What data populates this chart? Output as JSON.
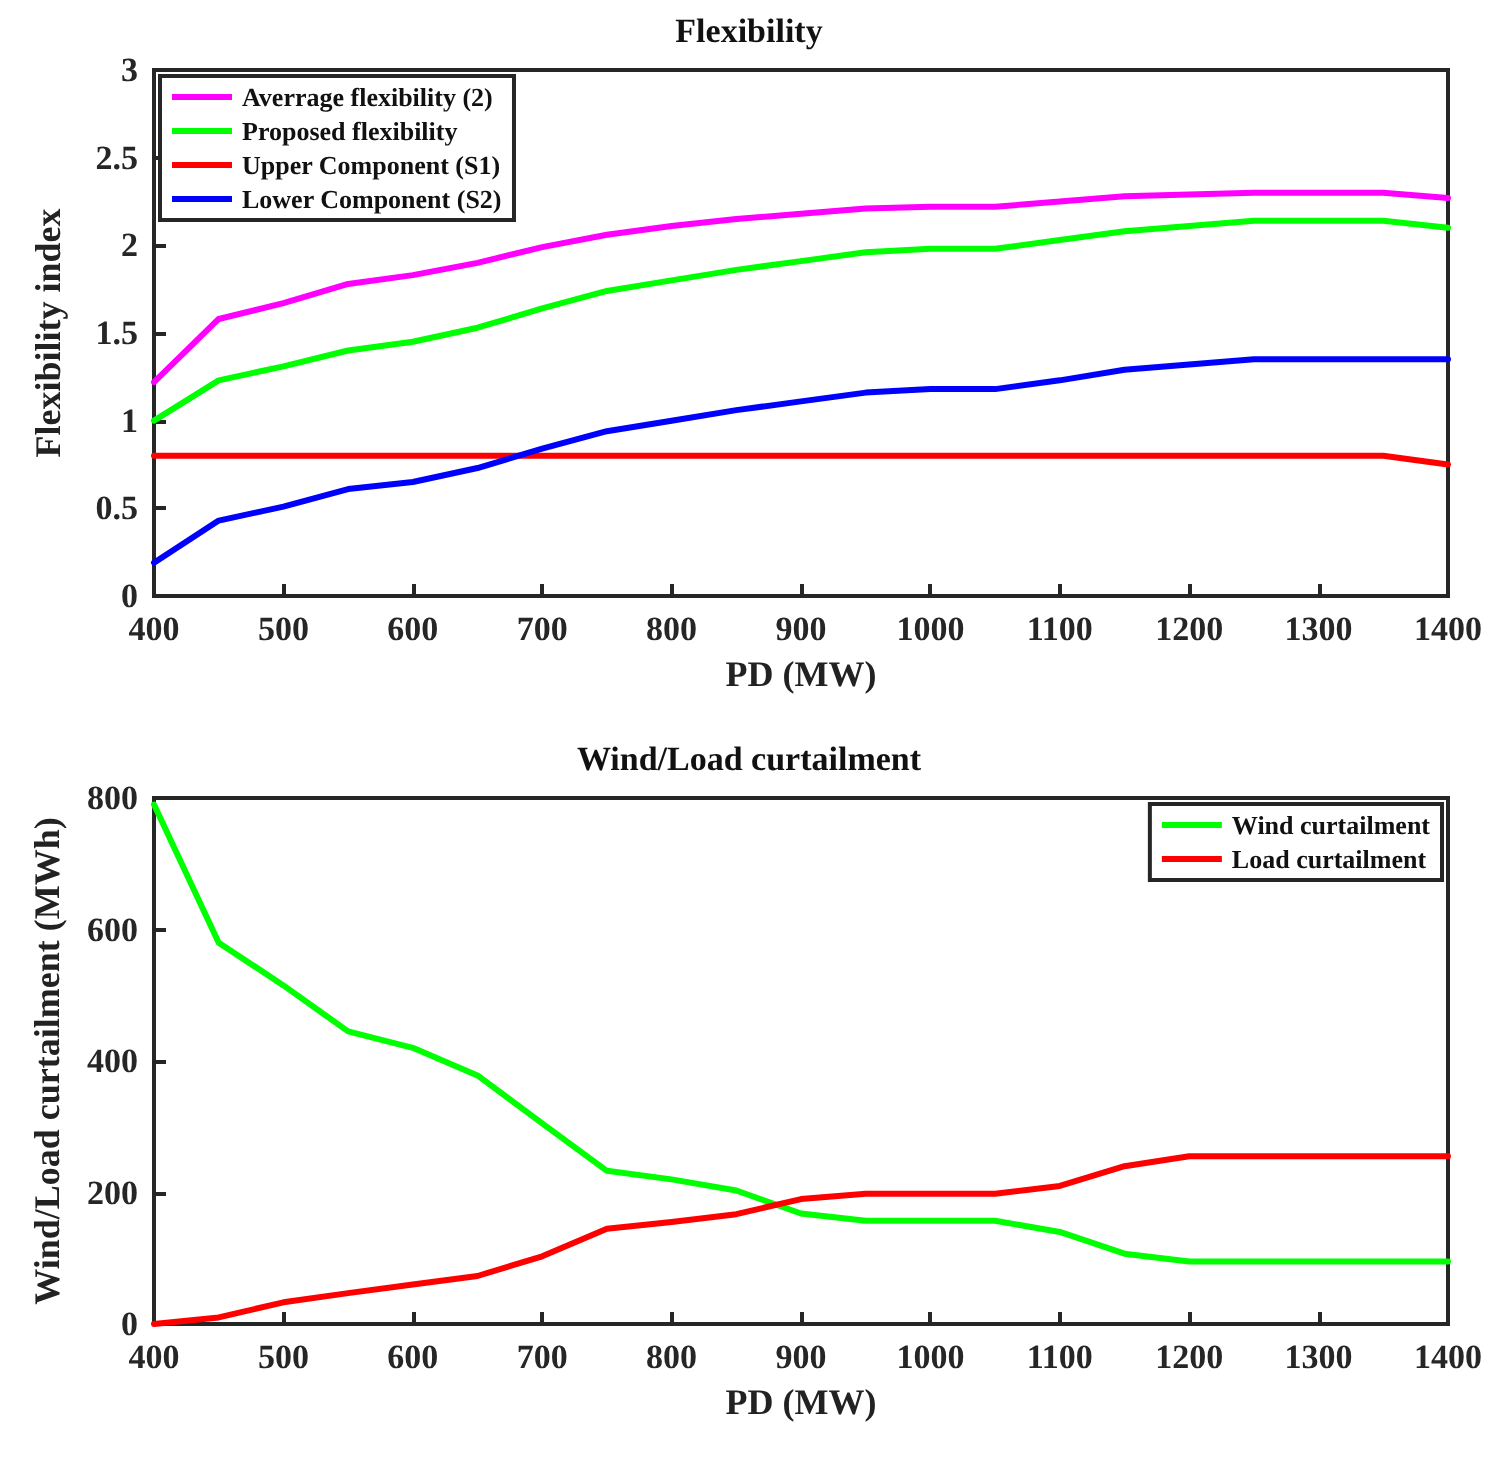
{
  "chart_data": [
    {
      "type": "line",
      "title": "Flexibility",
      "xlabel": "PD (MW)",
      "ylabel": "Flexibility index",
      "x": [
        400,
        450,
        500,
        550,
        600,
        650,
        700,
        750,
        800,
        850,
        900,
        950,
        1000,
        1050,
        1100,
        1150,
        1200,
        1250,
        1300,
        1350,
        1400
      ],
      "series": [
        {
          "name": "Averrage flexibility (2)",
          "color": "#ff00ff",
          "values": [
            1.22,
            1.58,
            1.67,
            1.78,
            1.83,
            1.9,
            1.99,
            2.06,
            2.11,
            2.15,
            2.18,
            2.21,
            2.22,
            2.22,
            2.25,
            2.28,
            2.29,
            2.3,
            2.3,
            2.3,
            2.27
          ]
        },
        {
          "name": "Proposed flexibility",
          "color": "#00ff00",
          "values": [
            1.0,
            1.23,
            1.31,
            1.4,
            1.45,
            1.53,
            1.64,
            1.74,
            1.8,
            1.86,
            1.91,
            1.96,
            1.98,
            1.98,
            2.03,
            2.08,
            2.11,
            2.14,
            2.14,
            2.14,
            2.1
          ]
        },
        {
          "name": "Upper Component (S1)",
          "color": "#ff0000",
          "values": [
            0.8,
            0.8,
            0.8,
            0.8,
            0.8,
            0.8,
            0.8,
            0.8,
            0.8,
            0.8,
            0.8,
            0.8,
            0.8,
            0.8,
            0.8,
            0.8,
            0.8,
            0.8,
            0.8,
            0.8,
            0.75
          ]
        },
        {
          "name": "Lower Component (S2)",
          "color": "#0000ff",
          "values": [
            0.19,
            0.43,
            0.51,
            0.61,
            0.65,
            0.73,
            0.84,
            0.94,
            1.0,
            1.06,
            1.11,
            1.16,
            1.18,
            1.18,
            1.23,
            1.29,
            1.32,
            1.35,
            1.35,
            1.35,
            1.35
          ]
        }
      ],
      "xlim": [
        400,
        1400
      ],
      "xticks": [
        400,
        500,
        600,
        700,
        800,
        900,
        1000,
        1100,
        1200,
        1300,
        1400
      ],
      "ylim": [
        0,
        3
      ],
      "yticks": [
        0,
        0.5,
        1,
        1.5,
        2,
        2.5,
        3
      ],
      "legend": "top left"
    },
    {
      "type": "line",
      "title": "Wind/Load curtailment",
      "xlabel": "PD (MW)",
      "ylabel": "Wind/Load curtailment (MWh)",
      "x": [
        400,
        450,
        500,
        550,
        600,
        650,
        700,
        750,
        800,
        850,
        900,
        950,
        1000,
        1050,
        1100,
        1150,
        1200,
        1250,
        1300,
        1350,
        1400
      ],
      "series": [
        {
          "name": "Wind curtailment",
          "color": "#00ff00",
          "values": [
            790,
            580,
            515,
            445,
            420,
            378,
            305,
            233,
            220,
            203,
            168,
            157,
            157,
            157,
            140,
            107,
            95,
            95,
            95,
            95,
            95
          ]
        },
        {
          "name": "Load curtailment",
          "color": "#ff0000",
          "values": [
            0,
            10,
            33,
            47,
            60,
            73,
            103,
            145,
            155,
            167,
            190,
            198,
            198,
            198,
            210,
            240,
            255,
            255,
            255,
            255,
            255
          ]
        }
      ],
      "xlim": [
        400,
        1400
      ],
      "xticks": [
        400,
        500,
        600,
        700,
        800,
        900,
        1000,
        1100,
        1200,
        1300,
        1400
      ],
      "ylim": [
        0,
        800
      ],
      "yticks": [
        0,
        200,
        400,
        600,
        800
      ],
      "legend": "top right"
    }
  ]
}
